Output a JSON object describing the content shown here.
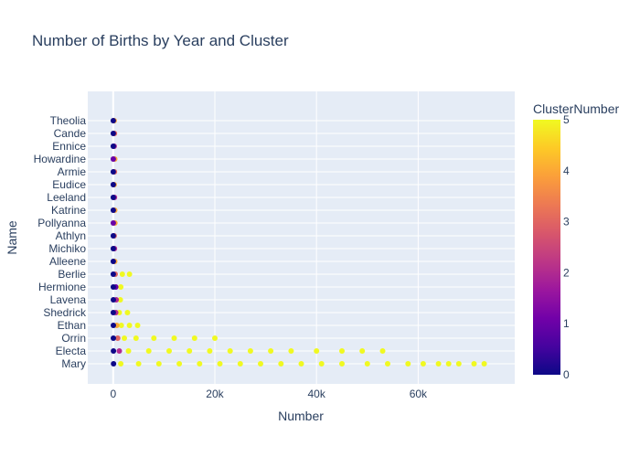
{
  "chart_data": {
    "type": "scatter",
    "title": "Number of Births by Year and Cluster",
    "xlabel": "Number",
    "ylabel": "Name",
    "xlim": [
      -5000,
      79000
    ],
    "x_ticks": [
      0,
      20000,
      40000,
      60000
    ],
    "x_tick_labels": [
      "0",
      "20k",
      "40k",
      "60k"
    ],
    "y_tick_labels": [
      "Theolia",
      "Cande",
      "Ennice",
      "Howardine",
      "Armie",
      "Eudice",
      "Leeland",
      "Katrine",
      "Pollyanna",
      "Athlyn",
      "Michiko",
      "Alleene",
      "Berlie",
      "Hermione",
      "Lavena",
      "Shedrick",
      "Ethan",
      "Orrin",
      "Electa",
      "Mary"
    ],
    "colorbar": {
      "title": "ClusterNumber",
      "min": 0,
      "max": 5,
      "ticks": [
        0,
        1,
        2,
        3,
        4,
        5
      ],
      "colorscale": [
        "#0d0887",
        "#46039f",
        "#7201a8",
        "#9c179e",
        "#bd3786",
        "#d8576b",
        "#ed7953",
        "#fb9f3a",
        "#fdca26",
        "#f0f921"
      ]
    },
    "grid": true,
    "legend": "none",
    "points": [
      {
        "name": "Mary",
        "x": 73000,
        "cluster": 5
      },
      {
        "name": "Mary",
        "x": 71000,
        "cluster": 5
      },
      {
        "name": "Mary",
        "x": 68000,
        "cluster": 5
      },
      {
        "name": "Mary",
        "x": 66000,
        "cluster": 5
      },
      {
        "name": "Mary",
        "x": 64000,
        "cluster": 5
      },
      {
        "name": "Mary",
        "x": 61000,
        "cluster": 5
      },
      {
        "name": "Mary",
        "x": 58000,
        "cluster": 5
      },
      {
        "name": "Mary",
        "x": 54000,
        "cluster": 5
      },
      {
        "name": "Mary",
        "x": 50000,
        "cluster": 5
      },
      {
        "name": "Mary",
        "x": 45000,
        "cluster": 5
      },
      {
        "name": "Mary",
        "x": 41000,
        "cluster": 5
      },
      {
        "name": "Mary",
        "x": 37000,
        "cluster": 5
      },
      {
        "name": "Mary",
        "x": 33000,
        "cluster": 5
      },
      {
        "name": "Mary",
        "x": 29000,
        "cluster": 5
      },
      {
        "name": "Mary",
        "x": 25000,
        "cluster": 5
      },
      {
        "name": "Mary",
        "x": 21000,
        "cluster": 5
      },
      {
        "name": "Mary",
        "x": 17000,
        "cluster": 5
      },
      {
        "name": "Mary",
        "x": 13000,
        "cluster": 5
      },
      {
        "name": "Mary",
        "x": 9000,
        "cluster": 5
      },
      {
        "name": "Mary",
        "x": 5000,
        "cluster": 5
      },
      {
        "name": "Mary",
        "x": 1500,
        "cluster": 5
      },
      {
        "name": "Mary",
        "x": 80,
        "cluster": 0
      },
      {
        "name": "Electa",
        "x": 53000,
        "cluster": 5
      },
      {
        "name": "Electa",
        "x": 49000,
        "cluster": 5
      },
      {
        "name": "Electa",
        "x": 45000,
        "cluster": 5
      },
      {
        "name": "Electa",
        "x": 40000,
        "cluster": 5
      },
      {
        "name": "Electa",
        "x": 35000,
        "cluster": 5
      },
      {
        "name": "Electa",
        "x": 31000,
        "cluster": 5
      },
      {
        "name": "Electa",
        "x": 27000,
        "cluster": 5
      },
      {
        "name": "Electa",
        "x": 23000,
        "cluster": 5
      },
      {
        "name": "Electa",
        "x": 19000,
        "cluster": 5
      },
      {
        "name": "Electa",
        "x": 15000,
        "cluster": 5
      },
      {
        "name": "Electa",
        "x": 11000,
        "cluster": 5
      },
      {
        "name": "Electa",
        "x": 7000,
        "cluster": 5
      },
      {
        "name": "Electa",
        "x": 3000,
        "cluster": 5
      },
      {
        "name": "Electa",
        "x": 1200,
        "cluster": 2
      },
      {
        "name": "Electa",
        "x": 50,
        "cluster": 0
      },
      {
        "name": "Orrin",
        "x": 20000,
        "cluster": 5
      },
      {
        "name": "Orrin",
        "x": 16000,
        "cluster": 5
      },
      {
        "name": "Orrin",
        "x": 12000,
        "cluster": 5
      },
      {
        "name": "Orrin",
        "x": 8000,
        "cluster": 5
      },
      {
        "name": "Orrin",
        "x": 4500,
        "cluster": 5
      },
      {
        "name": "Orrin",
        "x": 2200,
        "cluster": 5
      },
      {
        "name": "Orrin",
        "x": 900,
        "cluster": 3
      },
      {
        "name": "Orrin",
        "x": 40,
        "cluster": 0
      },
      {
        "name": "Ethan",
        "x": 4800,
        "cluster": 5
      },
      {
        "name": "Ethan",
        "x": 3200,
        "cluster": 5
      },
      {
        "name": "Ethan",
        "x": 1600,
        "cluster": 5
      },
      {
        "name": "Ethan",
        "x": 700,
        "cluster": 4
      },
      {
        "name": "Ethan",
        "x": 30,
        "cluster": 0
      },
      {
        "name": "Shedrick",
        "x": 2800,
        "cluster": 5
      },
      {
        "name": "Shedrick",
        "x": 1200,
        "cluster": 5
      },
      {
        "name": "Shedrick",
        "x": 500,
        "cluster": 2
      },
      {
        "name": "Shedrick",
        "x": 20,
        "cluster": 0
      },
      {
        "name": "Lavena",
        "x": 1400,
        "cluster": 5
      },
      {
        "name": "Lavena",
        "x": 600,
        "cluster": 2
      },
      {
        "name": "Lavena",
        "x": 30,
        "cluster": 0
      },
      {
        "name": "Hermione",
        "x": 1500,
        "cluster": 5
      },
      {
        "name": "Hermione",
        "x": 500,
        "cluster": 1
      },
      {
        "name": "Hermione",
        "x": 25,
        "cluster": 0
      },
      {
        "name": "Berlie",
        "x": 3200,
        "cluster": 5
      },
      {
        "name": "Berlie",
        "x": 1800,
        "cluster": 5
      },
      {
        "name": "Berlie",
        "x": 400,
        "cluster": 3
      },
      {
        "name": "Berlie",
        "x": 20,
        "cluster": 0
      },
      {
        "name": "Alleene",
        "x": 300,
        "cluster": 4
      },
      {
        "name": "Alleene",
        "x": 15,
        "cluster": 0
      },
      {
        "name": "Michiko",
        "x": 250,
        "cluster": 2
      },
      {
        "name": "Michiko",
        "x": 10,
        "cluster": 0
      },
      {
        "name": "Athlyn",
        "x": 200,
        "cluster": 3
      },
      {
        "name": "Athlyn",
        "x": 10,
        "cluster": 0
      },
      {
        "name": "Pollyanna",
        "x": 350,
        "cluster": 4
      },
      {
        "name": "Pollyanna",
        "x": 20,
        "cluster": 1
      },
      {
        "name": "Katrine",
        "x": 300,
        "cluster": 4
      },
      {
        "name": "Katrine",
        "x": 15,
        "cluster": 0
      },
      {
        "name": "Leeland",
        "x": 250,
        "cluster": 2
      },
      {
        "name": "Leeland",
        "x": 10,
        "cluster": 0
      },
      {
        "name": "Eudice",
        "x": 200,
        "cluster": 4
      },
      {
        "name": "Eudice",
        "x": 10,
        "cluster": 0
      },
      {
        "name": "Armie",
        "x": 250,
        "cluster": 3
      },
      {
        "name": "Armie",
        "x": 10,
        "cluster": 0
      },
      {
        "name": "Howardine",
        "x": 300,
        "cluster": 4
      },
      {
        "name": "Howardine",
        "x": 15,
        "cluster": 1
      },
      {
        "name": "Ennice",
        "x": 200,
        "cluster": 2
      },
      {
        "name": "Ennice",
        "x": 10,
        "cluster": 0
      },
      {
        "name": "Cande",
        "x": 250,
        "cluster": 3
      },
      {
        "name": "Cande",
        "x": 10,
        "cluster": 0
      },
      {
        "name": "Theolia",
        "x": 200,
        "cluster": 4
      },
      {
        "name": "Theolia",
        "x": 10,
        "cluster": 0
      }
    ]
  }
}
